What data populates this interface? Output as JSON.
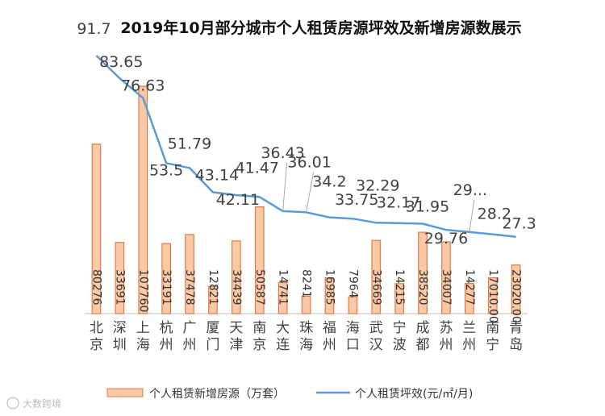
{
  "chart_data": {
    "type": "bar+line",
    "title": "2019年10月部分城市个人租赁房源坪效及新增房源数展示",
    "categories": [
      "北京",
      "深圳",
      "上海",
      "杭州",
      "广州",
      "厦门",
      "天津",
      "南京",
      "大连",
      "珠海",
      "福州",
      "海口",
      "武汉",
      "宁波",
      "成都",
      "苏州",
      "兰州",
      "南宁",
      "青岛"
    ],
    "series": [
      {
        "name": "个人租赁新增房源（万套）",
        "type": "bar",
        "values": [
          80276,
          33691,
          107760,
          33191,
          37478,
          12821,
          34439,
          50587,
          14741,
          8241,
          16985,
          7964,
          34669,
          14215,
          38520,
          34007,
          14277,
          17010.0,
          23020.0
        ],
        "labels": [
          "80276",
          "33691",
          "107760",
          "33191",
          "37478",
          "12821",
          "34439",
          "50587",
          "14741",
          "8241",
          "16985",
          "7964",
          "34669",
          "14215",
          "38520",
          "34007",
          "14277",
          "17010.00",
          "23020.00"
        ]
      },
      {
        "name": "个人租赁坪效(元/㎡/月)",
        "type": "line",
        "values": [
          91.7,
          83.65,
          76.63,
          53.5,
          51.79,
          43.14,
          42.11,
          41.47,
          36.43,
          36.01,
          34.2,
          33.75,
          32.29,
          32.17,
          31.95,
          29.76,
          29.0,
          28.2,
          27.3
        ],
        "labels": [
          "91.7",
          "83.65",
          "76.63",
          "53.5",
          "51.79",
          "43.14",
          "42.11",
          "41.47",
          "36.43",
          "36.01",
          "34.2",
          "33.75",
          "32.29",
          "32.17",
          "31.95",
          "29.76",
          "29...",
          "28.2",
          "27.3"
        ]
      }
    ],
    "bar_ylim": [
      0,
      110000
    ],
    "line_ylim": [
      0,
      100
    ],
    "legend_position": "bottom",
    "colors": {
      "bar_fill": "#F9C9A8",
      "bar_stroke": "#E07B45",
      "line": "#5B9BD5",
      "axis": "#BFBFBF",
      "leader": "#A6A6A6"
    }
  },
  "watermark": "大数跨境"
}
